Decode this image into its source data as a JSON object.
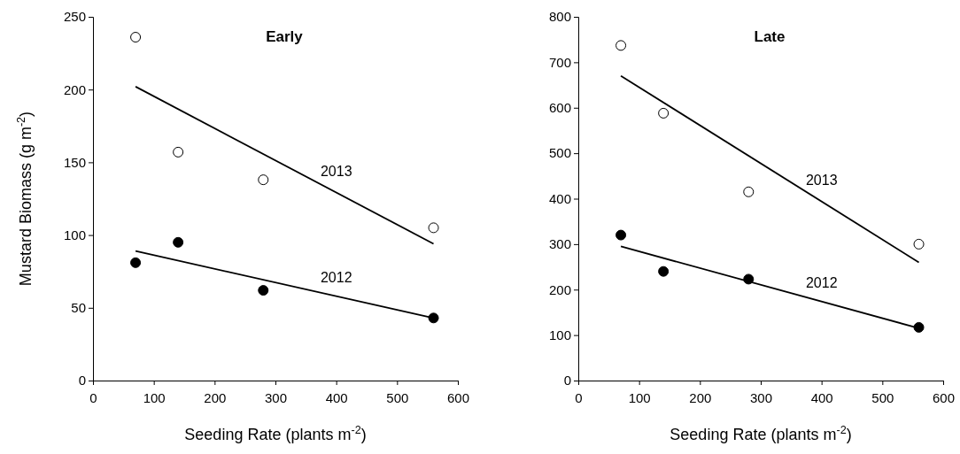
{
  "chart_data": [
    {
      "type": "scatter",
      "title": "Early",
      "xlabel": "Seeding Rate (plants m$^{-2}$)",
      "ylabel": "Mustard Biomass (g m$^{-2}$)",
      "xlim": [
        0,
        600
      ],
      "xticks": [
        0,
        100,
        200,
        300,
        400,
        500,
        600
      ],
      "ylim": [
        0,
        250
      ],
      "yticks": [
        0,
        50,
        100,
        150,
        200,
        250
      ],
      "series": [
        {
          "color": "#ffffff",
          "marker": "circle",
          "x": [
            70,
            140,
            280,
            560
          ],
          "values": [
            236,
            157,
            138,
            105
          ]
        },
        {
          "color": "#000000",
          "marker": "circle",
          "x": [
            70,
            140,
            280,
            560
          ],
          "values": [
            81,
            95,
            62,
            43
          ]
        },
        {
          "type": "line",
          "name": "2013",
          "color": "#000000",
          "x": [
            70,
            560
          ],
          "values": [
            202,
            94
          ]
        },
        {
          "type": "line",
          "name": "2012",
          "color": "#000000",
          "x": [
            70,
            560
          ],
          "values": [
            89,
            43
          ]
        }
      ]
    },
    {
      "type": "scatter",
      "title": "Late",
      "xlabel": "Seeding Rate (plants m$^{-2}$)",
      "xlim": [
        0,
        600
      ],
      "xticks": [
        0,
        100,
        200,
        300,
        400,
        500,
        600
      ],
      "ylim": [
        0,
        800
      ],
      "yticks": [
        0,
        100,
        200,
        300,
        400,
        500,
        600,
        700,
        800
      ],
      "series": [
        {
          "color": "#ffffff",
          "marker": "circle",
          "x": [
            70,
            140,
            280,
            560
          ],
          "values": [
            737,
            588,
            415,
            300
          ]
        },
        {
          "color": "#000000",
          "marker": "circle",
          "x": [
            70,
            140,
            280,
            560
          ],
          "values": [
            320,
            240,
            223,
            117
          ]
        },
        {
          "type": "line",
          "name": "2013",
          "color": "#000000",
          "x": [
            70,
            560
          ],
          "values": [
            670,
            260
          ]
        },
        {
          "type": "line",
          "name": "2012",
          "color": "#000000",
          "x": [
            70,
            560
          ],
          "values": [
            295,
            115
          ]
        }
      ]
    }
  ]
}
